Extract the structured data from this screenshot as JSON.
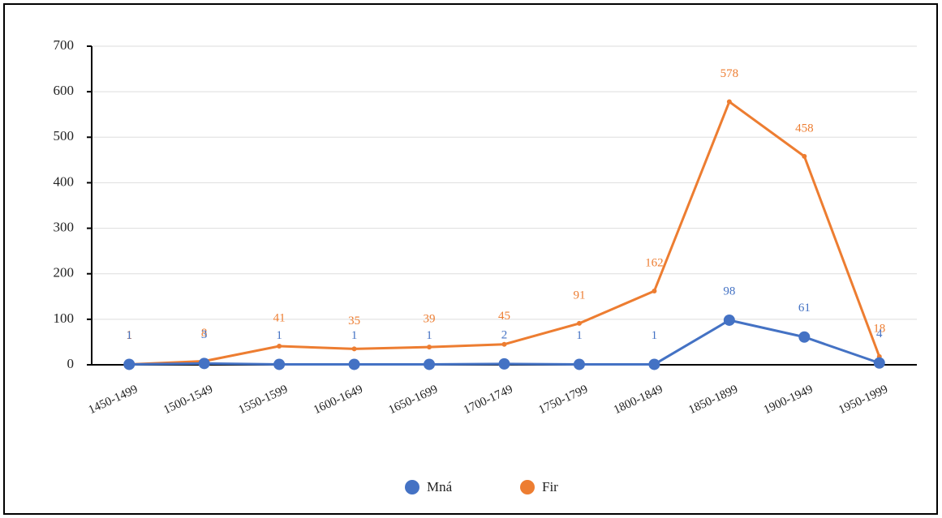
{
  "chart_data": {
    "type": "line",
    "categories": [
      "1450-1499",
      "1500-1549",
      "1550-1599",
      "1600-1649",
      "1650-1699",
      "1700-1749",
      "1750-1799",
      "1800-1849",
      "1850-1899",
      "1900-1949",
      "1950-1999"
    ],
    "series": [
      {
        "name": "Mná",
        "color": "#4472c4",
        "values": [
          1,
          3,
          1,
          1,
          1,
          2,
          1,
          1,
          98,
          61,
          4
        ]
      },
      {
        "name": "Fir",
        "color": "#ed7d31",
        "values": [
          1,
          8,
          41,
          35,
          39,
          45,
          91,
          162,
          578,
          458,
          18
        ]
      }
    ],
    "ylim": [
      0,
      700
    ],
    "yticks": [
      0,
      100,
      200,
      300,
      400,
      500,
      600,
      700
    ],
    "grid": true,
    "legend": "bottom"
  }
}
